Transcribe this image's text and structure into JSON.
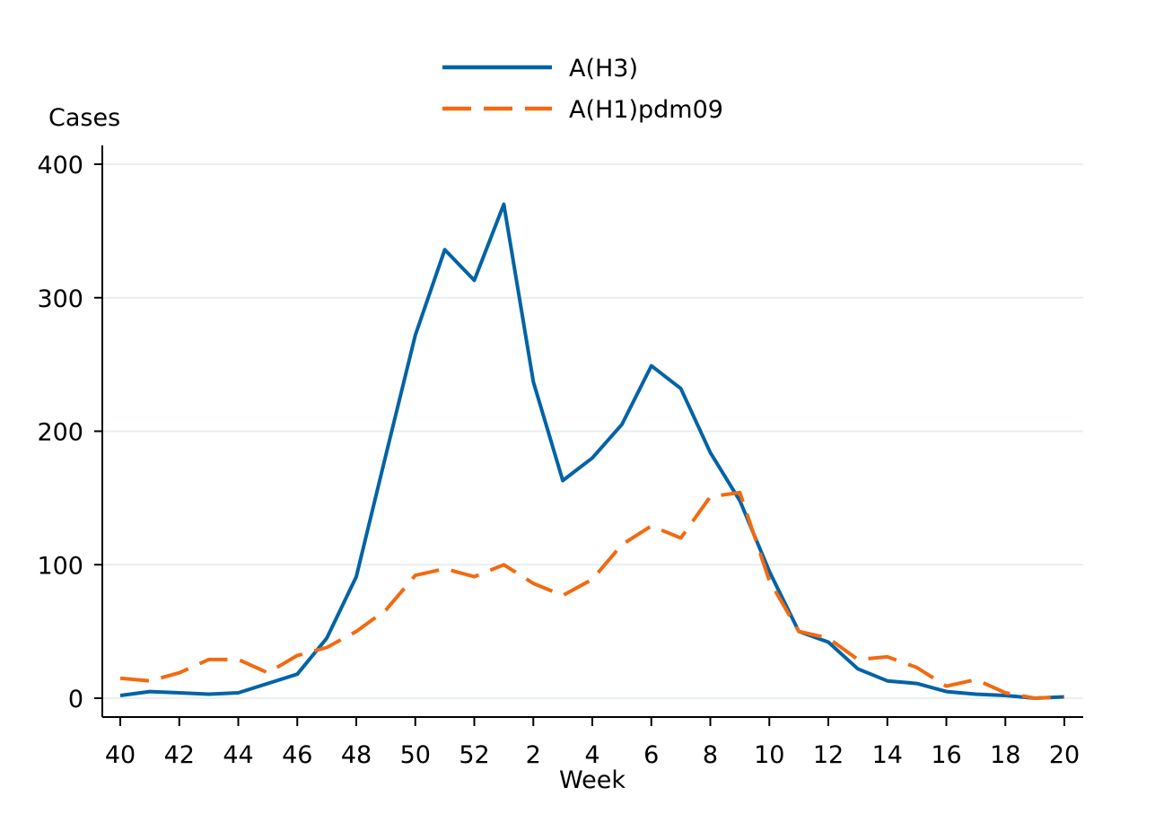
{
  "chart_data": {
    "type": "line",
    "xlabel": "Week",
    "ylabel": "Cases",
    "ylim": [
      0,
      400
    ],
    "yticks": [
      0,
      100,
      200,
      300,
      400
    ],
    "grid": true,
    "legend_position": "top-center",
    "x": [
      "40",
      "41",
      "42",
      "43",
      "44",
      "45",
      "46",
      "47",
      "48",
      "49",
      "50",
      "51",
      "52",
      "1",
      "2",
      "3",
      "4",
      "5",
      "6",
      "7",
      "8",
      "9",
      "10",
      "11",
      "12",
      "13",
      "14",
      "15",
      "16",
      "17",
      "18",
      "19",
      "20"
    ],
    "xticks": [
      "40",
      "42",
      "44",
      "46",
      "48",
      "50",
      "52",
      "2",
      "4",
      "6",
      "8",
      "10",
      "12",
      "14",
      "16",
      "18",
      "20"
    ],
    "series": [
      {
        "name": "A(H3)",
        "color": "#0063A6",
        "style": "solid",
        "values": [
          2,
          5,
          4,
          3,
          4,
          11,
          18,
          45,
          91,
          182,
          272,
          336,
          313,
          370,
          237,
          163,
          180,
          205,
          249,
          232,
          184,
          148,
          95,
          50,
          42,
          22,
          13,
          11,
          5,
          3,
          2,
          0,
          1
        ]
      },
      {
        "name": "A(H1)pdm09",
        "color": "#F26A10",
        "style": "dashed",
        "values": [
          15,
          13,
          19,
          29,
          29,
          19,
          32,
          38,
          50,
          66,
          92,
          97,
          91,
          100,
          86,
          77,
          89,
          115,
          129,
          120,
          151,
          154,
          88,
          50,
          45,
          29,
          31,
          23,
          9,
          14,
          4,
          0,
          1
        ]
      }
    ]
  }
}
